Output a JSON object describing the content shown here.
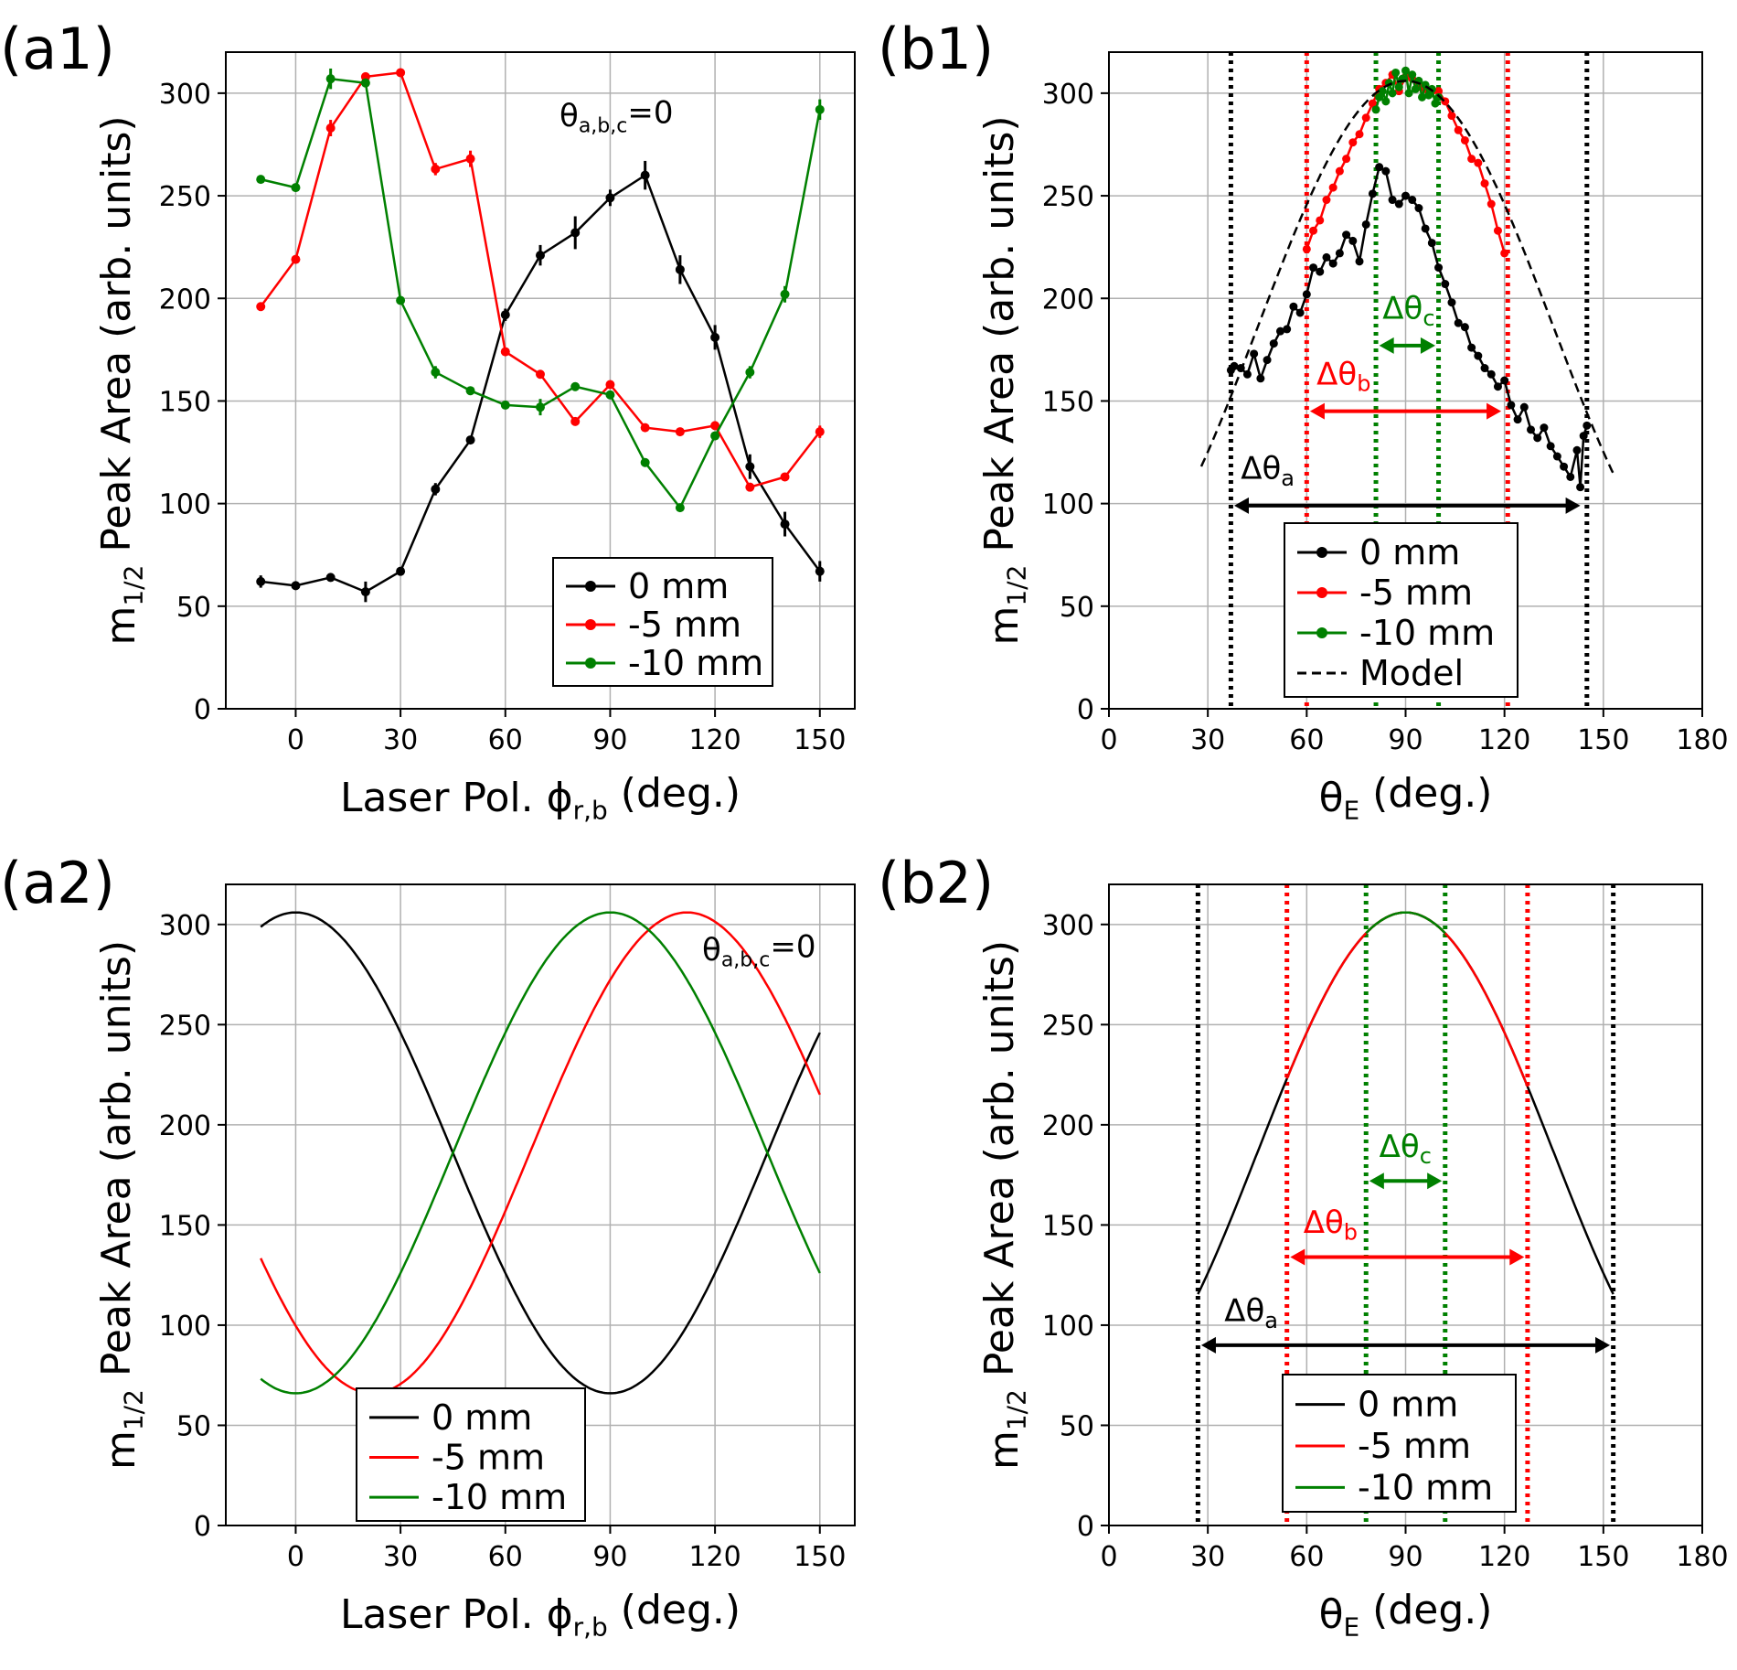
{
  "chart_data": [
    {
      "panel": "(a1)",
      "type": "line",
      "xlabel_main": "Laser Pol. ϕ",
      "xlabel_sub": "r,b",
      "xlabel_tail": " (deg.)",
      "ylabel_main": "m",
      "ylabel_sub": "1/2",
      "ylabel_tail": " Peak Area (arb.  units)",
      "xlim": [
        -20,
        160
      ],
      "ylim": [
        0,
        320
      ],
      "xticks": [
        0,
        30,
        60,
        90,
        120,
        150
      ],
      "yticks": [
        0,
        50,
        100,
        150,
        200,
        250,
        300
      ],
      "grid": true,
      "legend_position": "lower-right",
      "annotation": {
        "main": "θ",
        "sub": "a,b,c",
        "tail": "=0"
      },
      "series": [
        {
          "name": "0 mm",
          "color": "#000000",
          "markers": true,
          "x": [
            -10,
            0,
            10,
            20,
            30,
            40,
            50,
            60,
            70,
            80,
            90,
            100,
            110,
            120,
            130,
            140,
            150
          ],
          "y": [
            62,
            60,
            64,
            57,
            67,
            107,
            131,
            192,
            221,
            232,
            249,
            260,
            214,
            181,
            118,
            90,
            67
          ],
          "err": [
            3,
            2,
            2,
            5,
            2,
            3,
            2,
            3,
            5,
            8,
            4,
            7,
            7,
            6,
            6,
            6,
            5
          ]
        },
        {
          "name": "-5 mm",
          "color": "#ff0000",
          "markers": true,
          "x": [
            -10,
            0,
            10,
            20,
            30,
            40,
            50,
            60,
            70,
            80,
            90,
            100,
            110,
            120,
            130,
            140,
            150
          ],
          "y": [
            196,
            219,
            283,
            308,
            310,
            263,
            268,
            174,
            163,
            140,
            158,
            137,
            135,
            138,
            108,
            113,
            135
          ],
          "err": [
            2,
            2,
            4,
            2,
            2,
            3,
            4,
            2,
            2,
            2,
            2,
            2,
            2,
            2,
            2,
            2,
            3
          ]
        },
        {
          "name": "-10 mm",
          "color": "#008000",
          "markers": true,
          "x": [
            -10,
            0,
            10,
            20,
            30,
            40,
            50,
            60,
            70,
            80,
            90,
            100,
            110,
            120,
            130,
            140,
            150
          ],
          "y": [
            258,
            254,
            307,
            305,
            199,
            164,
            155,
            148,
            147,
            157,
            153,
            120,
            98,
            133,
            164,
            202,
            292
          ],
          "err": [
            2,
            2,
            5,
            2,
            2,
            3,
            2,
            2,
            4,
            2,
            2,
            2,
            2,
            2,
            3,
            4,
            5
          ]
        }
      ]
    },
    {
      "panel": "(b1)",
      "type": "line",
      "xlabel_main": "θ",
      "xlabel_sub": "E",
      "xlabel_tail": " (deg.)",
      "ylabel_main": "m",
      "ylabel_sub": "1/2",
      "ylabel_tail": " Peak Area (arb. units)",
      "xlim": [
        0,
        180
      ],
      "ylim": [
        0,
        320
      ],
      "xticks": [
        0,
        30,
        60,
        90,
        120,
        150,
        180
      ],
      "yticks": [
        0,
        50,
        100,
        150,
        200,
        250,
        300
      ],
      "grid": true,
      "legend_position": "lower-center",
      "vlines": [
        {
          "x": 37,
          "color": "#000000"
        },
        {
          "x": 145,
          "color": "#000000"
        },
        {
          "x": 60,
          "color": "#ff0000"
        },
        {
          "x": 121,
          "color": "#ff0000"
        },
        {
          "x": 81,
          "color": "#008000"
        },
        {
          "x": 100,
          "color": "#008000"
        }
      ],
      "arrows": [
        {
          "x1": 38,
          "x2": 143,
          "y": 99,
          "color": "#000000",
          "label_main": "Δθ",
          "label_sub": "a",
          "label_x": 40,
          "label_y": 112
        },
        {
          "x1": 61,
          "x2": 119,
          "y": 145,
          "color": "#ff0000",
          "label_main": "Δθ",
          "label_sub": "b",
          "label_x": 63,
          "label_y": 158
        },
        {
          "x1": 82,
          "x2": 99,
          "y": 177,
          "color": "#008000",
          "label_main": "Δθ",
          "label_sub": "c",
          "label_x": 83,
          "label_y": 190
        }
      ],
      "series": [
        {
          "name": "0 mm",
          "color": "#000000",
          "markers": true,
          "x": [
            37,
            38,
            40,
            42,
            44,
            46,
            48,
            50,
            52,
            54,
            56,
            58,
            60,
            62,
            64,
            66,
            68,
            70,
            72,
            74,
            76,
            78,
            80,
            82,
            84,
            86,
            88,
            90,
            92,
            94,
            96,
            98,
            100,
            102,
            104,
            106,
            108,
            110,
            112,
            114,
            116,
            118,
            120,
            122,
            124,
            126,
            128,
            130,
            132,
            134,
            136,
            138,
            140,
            142,
            143,
            144,
            145
          ],
          "y": [
            165,
            167,
            166,
            163,
            173,
            161,
            170,
            178,
            184,
            185,
            196,
            193,
            202,
            215,
            213,
            220,
            217,
            222,
            231,
            228,
            218,
            236,
            251,
            264,
            262,
            248,
            246,
            250,
            248,
            244,
            234,
            227,
            215,
            207,
            198,
            188,
            186,
            176,
            172,
            166,
            163,
            157,
            160,
            148,
            141,
            147,
            136,
            132,
            137,
            128,
            123,
            118,
            113,
            126,
            108,
            133,
            138
          ]
        },
        {
          "name": "-5 mm",
          "color": "#ff0000",
          "markers": true,
          "x": [
            60,
            62,
            64,
            66,
            68,
            70,
            72,
            74,
            76,
            78,
            80,
            82,
            84,
            86,
            88,
            90,
            92,
            94,
            96,
            98,
            100,
            102,
            104,
            106,
            108,
            110,
            112,
            114,
            116,
            118,
            120
          ],
          "y": [
            224,
            233,
            238,
            248,
            254,
            262,
            268,
            276,
            280,
            288,
            295,
            302,
            305,
            309,
            301,
            308,
            307,
            303,
            302,
            301,
            301,
            296,
            289,
            282,
            277,
            268,
            266,
            256,
            246,
            233,
            222
          ]
        },
        {
          "name": "-10 mm",
          "color": "#008000",
          "markers": true,
          "x": [
            81,
            82,
            83,
            84,
            85,
            86,
            87,
            88,
            89,
            90,
            91,
            92,
            93,
            94,
            95,
            96,
            97,
            98,
            99,
            100
          ],
          "y": [
            292,
            298,
            301,
            296,
            305,
            300,
            310,
            303,
            307,
            311,
            300,
            309,
            302,
            306,
            298,
            304,
            299,
            302,
            295,
            298
          ]
        },
        {
          "name": "Model",
          "color": "#000000",
          "markers": false,
          "dashed": true,
          "func": "cos2",
          "base": 65,
          "amp": 241,
          "phase": 90,
          "xrange": [
            28,
            153
          ]
        }
      ]
    },
    {
      "panel": "(a2)",
      "type": "line",
      "xlabel_main": "Laser Pol. ϕ",
      "xlabel_sub": "r,b",
      "xlabel_tail": " (deg.)",
      "ylabel_main": "m",
      "ylabel_sub": "1/2",
      "ylabel_tail": " Peak Area (arb. units)",
      "xlim": [
        -20,
        160
      ],
      "ylim": [
        0,
        320
      ],
      "xticks": [
        0,
        30,
        60,
        90,
        120,
        150
      ],
      "yticks": [
        0,
        50,
        100,
        150,
        200,
        250,
        300
      ],
      "grid": true,
      "legend_position": "lower-left",
      "annotation": {
        "main": "θ",
        "sub": "a,b,c",
        "tail": "=0"
      },
      "series": [
        {
          "name": "0 mm",
          "color": "#000000",
          "markers": false,
          "func": "sin2",
          "base": 66,
          "amp": 240,
          "phase": 0,
          "xrange": [
            -10,
            150
          ]
        },
        {
          "name": "-5 mm",
          "color": "#ff0000",
          "markers": false,
          "func": "sin2",
          "base": 66,
          "amp": 240,
          "phase": 112,
          "xrange": [
            -10,
            150
          ]
        },
        {
          "name": "-10 mm",
          "color": "#008000",
          "markers": false,
          "func": "sin2",
          "base": 66,
          "amp": 240,
          "phase": 90,
          "xrange": [
            -10,
            150
          ]
        }
      ]
    },
    {
      "panel": "(b2)",
      "type": "line",
      "xlabel_main": "θ",
      "xlabel_sub": "E",
      "xlabel_tail": " (deg.)",
      "ylabel_main": "m",
      "ylabel_sub": "1/2",
      "ylabel_tail": " Peak Area (arb. units)",
      "xlim": [
        0,
        180
      ],
      "ylim": [
        0,
        320
      ],
      "xticks": [
        0,
        30,
        60,
        90,
        120,
        150,
        180
      ],
      "yticks": [
        0,
        50,
        100,
        150,
        200,
        250,
        300
      ],
      "grid": true,
      "legend_position": "lower-center",
      "vlines": [
        {
          "x": 27,
          "color": "#000000"
        },
        {
          "x": 153,
          "color": "#000000"
        },
        {
          "x": 54,
          "color": "#ff0000"
        },
        {
          "x": 127,
          "color": "#ff0000"
        },
        {
          "x": 78,
          "color": "#008000"
        },
        {
          "x": 102,
          "color": "#008000"
        }
      ],
      "arrows": [
        {
          "x1": 28,
          "x2": 152,
          "y": 90,
          "color": "#000000",
          "label_main": "Δθ",
          "label_sub": "a",
          "label_x": 35,
          "label_y": 102
        },
        {
          "x1": 55,
          "x2": 126,
          "y": 134,
          "color": "#ff0000",
          "label_main": "Δθ",
          "label_sub": "b",
          "label_x": 59,
          "label_y": 146
        },
        {
          "x1": 79,
          "x2": 101,
          "y": 172,
          "color": "#008000",
          "label_main": "Δθ",
          "label_sub": "c",
          "label_x": 82,
          "label_y": 184
        }
      ],
      "series": [
        {
          "name": "0 mm",
          "color": "#000000",
          "markers": false,
          "func": "cos2",
          "base": 66,
          "amp": 240,
          "phase": 90,
          "xrange": [
            27,
            153
          ]
        },
        {
          "name": "-5 mm",
          "color": "#ff0000",
          "markers": false,
          "func": "cos2",
          "base": 66,
          "amp": 240,
          "phase": 90,
          "xrange": [
            54,
            127
          ]
        },
        {
          "name": "-10 mm",
          "color": "#008000",
          "markers": false,
          "func": "cos2",
          "base": 66,
          "amp": 240,
          "phase": 90,
          "xrange": [
            78,
            102
          ]
        }
      ]
    }
  ]
}
